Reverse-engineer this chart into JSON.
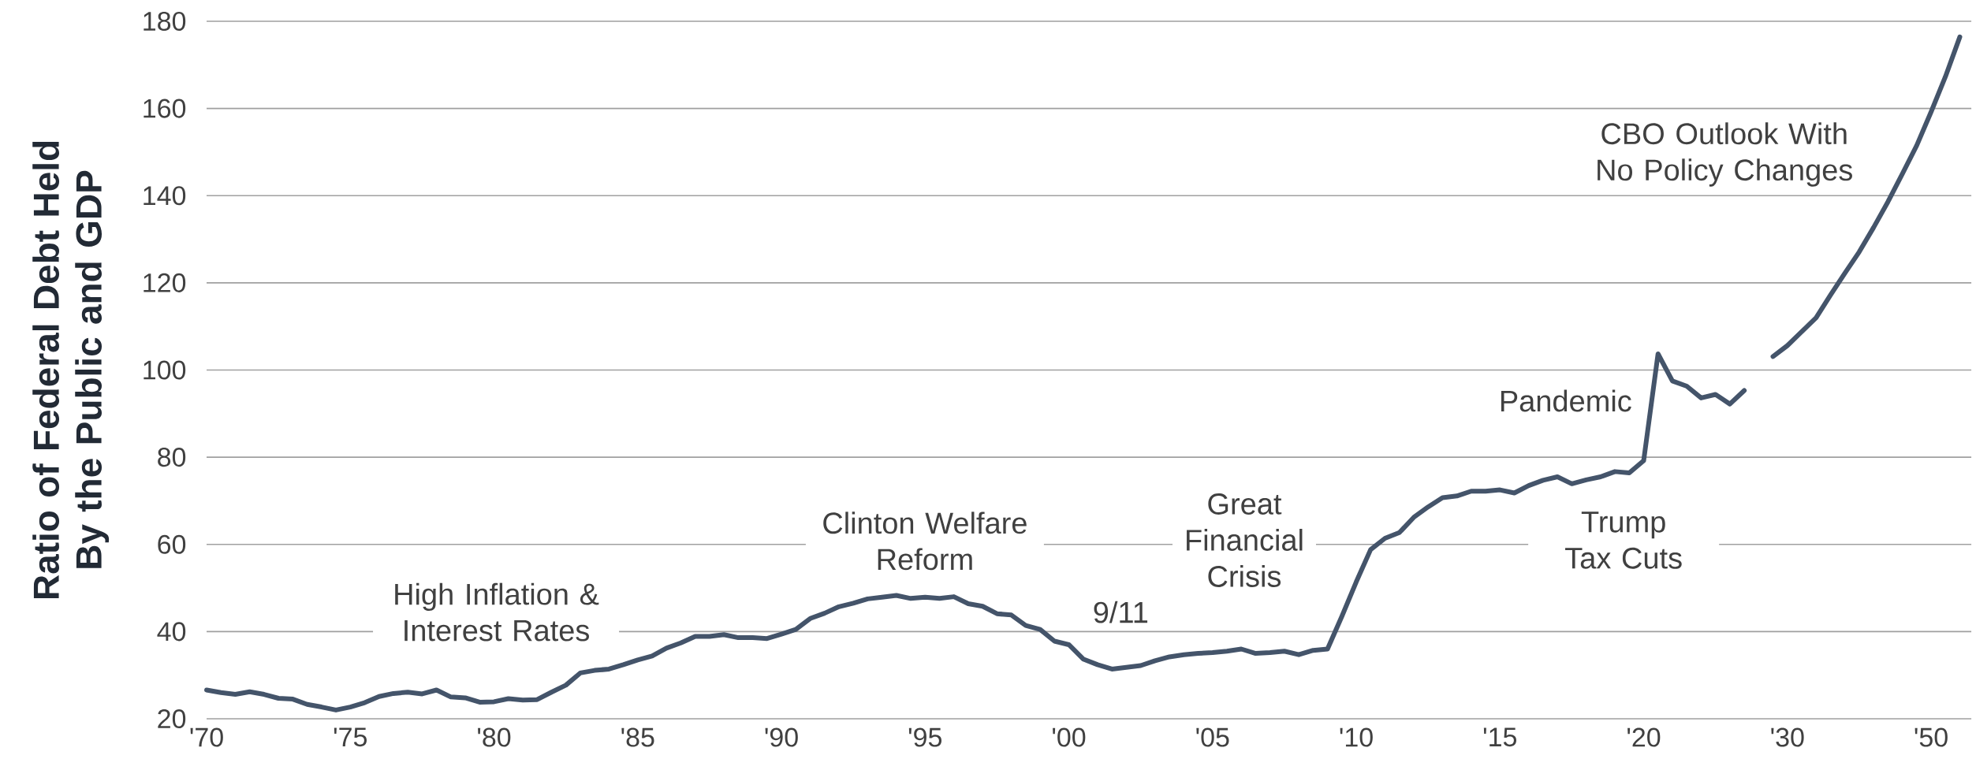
{
  "chart_data": {
    "type": "line",
    "ylabel": "Ratio of Federal Debt Held By the Public and GDP",
    "categories": [
      "'70",
      null,
      null,
      null,
      null,
      null,
      null,
      null,
      null,
      null,
      "'75",
      null,
      null,
      null,
      null,
      null,
      null,
      null,
      null,
      null,
      "'80",
      null,
      null,
      null,
      null,
      null,
      null,
      null,
      null,
      null,
      "'85",
      null,
      null,
      null,
      null,
      null,
      null,
      null,
      null,
      null,
      "'90",
      null,
      null,
      null,
      null,
      null,
      null,
      null,
      null,
      null,
      "'95",
      null,
      null,
      null,
      null,
      null,
      null,
      null,
      null,
      null,
      "'00",
      null,
      null,
      null,
      null,
      null,
      null,
      null,
      null,
      null,
      "'05",
      null,
      null,
      null,
      null,
      null,
      null,
      null,
      null,
      null,
      "'10",
      null,
      null,
      null,
      null,
      null,
      null,
      null,
      null,
      null,
      "'15",
      null,
      null,
      null,
      null,
      null,
      null,
      null,
      null,
      null,
      "'20",
      null,
      null,
      null,
      null,
      null,
      null,
      null,
      null,
      null,
      "'30",
      null,
      null,
      null,
      null,
      null,
      null,
      null,
      null,
      null,
      "'50",
      null,
      null
    ],
    "ylim": [
      20,
      180
    ],
    "yticks": [
      20,
      40,
      60,
      80,
      100,
      120,
      140,
      160,
      180
    ],
    "grid": "y",
    "series": [
      {
        "color": "#44546a",
        "values": [
          26.6,
          26.0,
          25.6,
          26.2,
          25.6,
          24.7,
          24.5,
          23.3,
          22.7,
          22.0,
          22.7,
          23.7,
          25.1,
          25.8,
          26.1,
          25.7,
          26.6,
          25.0,
          24.8,
          23.8,
          23.9,
          24.6,
          24.3,
          24.4,
          26.1,
          27.7,
          30.5,
          31.1,
          31.4,
          32.4,
          33.5,
          34.4,
          36.2,
          37.4,
          38.9,
          38.9,
          39.3,
          38.6,
          38.6,
          38.4,
          39.4,
          40.5,
          43.0,
          44.2,
          45.7,
          46.5,
          47.5,
          47.9,
          48.3,
          47.6,
          47.9,
          47.6,
          48.0,
          46.4,
          45.8,
          44.1,
          43.8,
          41.4,
          40.5,
          37.8,
          37.0,
          33.7,
          32.4,
          31.4,
          31.8,
          32.2,
          33.3,
          34.2,
          34.7,
          35.0,
          35.2,
          35.5,
          36.0,
          35.0,
          35.2,
          35.5,
          34.7,
          35.7,
          36.0,
          43.5,
          51.4,
          58.8,
          61.4,
          62.7,
          66.2,
          68.6,
          70.7,
          71.1,
          72.2,
          72.2,
          72.5,
          71.8,
          73.5,
          74.7,
          75.5,
          73.9,
          74.8,
          75.5,
          76.7,
          76.4,
          79.2,
          103.7,
          97.5,
          96.3,
          93.6,
          94.4,
          92.2,
          95.3,
          null,
          103.1,
          105.6,
          108.8,
          112.0,
          117.2,
          122.2,
          127.1,
          132.7,
          138.6,
          145.0,
          151.5,
          159.2,
          167.3,
          176.4
        ]
      }
    ],
    "annotations": [
      "High Inflation & Interest Rates",
      "Clinton Welfare Reform",
      "9/11",
      "Great Financial Crisis",
      "Pandemic",
      "Trump Tax Cuts",
      "CBO Outlook With No Policy Changes"
    ]
  }
}
